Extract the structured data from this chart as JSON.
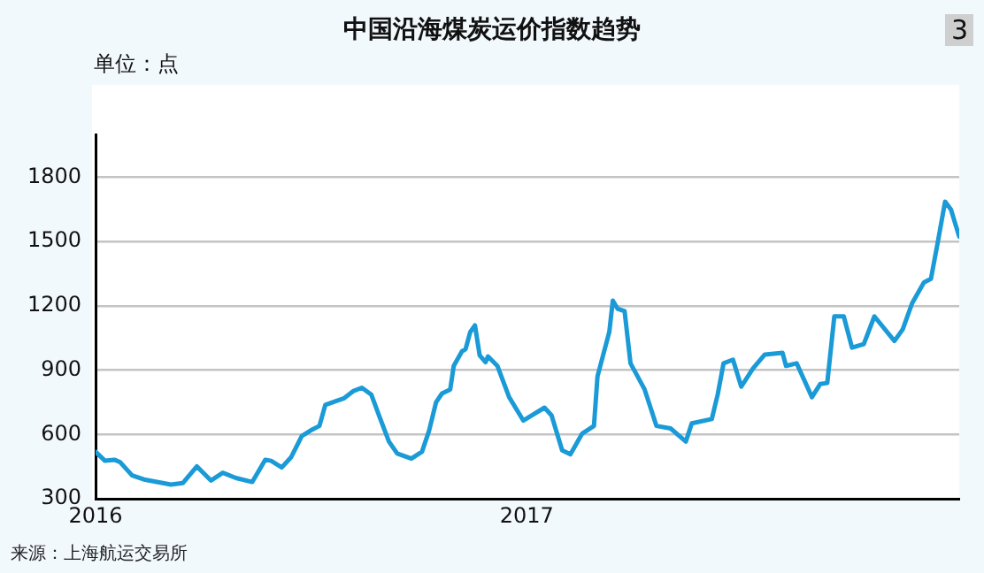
{
  "chart_data": {
    "type": "line",
    "title": "中国沿海煤炭运价指数趋势",
    "ylabel": "单位：点",
    "annotations": [
      "3",
      "来源：上海航运交易所"
    ],
    "x": [
      "2016-01-01",
      "2016-01-09",
      "2016-01-17",
      "2016-01-22",
      "2016-02-01",
      "2016-02-11",
      "2016-03-05",
      "2016-03-15",
      "2016-03-27",
      "2016-04-08",
      "2016-04-18",
      "2016-04-29",
      "2016-05-13",
      "2016-05-24",
      "2016-05-29",
      "2016-06-07",
      "2016-06-15",
      "2016-06-24",
      "2016-07-03",
      "2016-07-09",
      "2016-07-14",
      "2016-07-23",
      "2016-07-30",
      "2016-08-07",
      "2016-08-14",
      "2016-08-22",
      "2016-08-29",
      "2016-09-06",
      "2016-09-13",
      "2016-09-25",
      "2016-10-04",
      "2016-10-10",
      "2016-10-16",
      "2016-10-21",
      "2016-10-28",
      "2016-10-31",
      "2016-11-07",
      "2016-11-10",
      "2016-11-14",
      "2016-11-18",
      "2016-11-22",
      "2016-11-27",
      "2016-11-29",
      "2016-12-07",
      "2016-12-17",
      "2016-12-29",
      "2017-01-16",
      "2017-01-22",
      "2017-01-31",
      "2017-02-07",
      "2017-02-17",
      "2017-02-27",
      "2017-03-02",
      "2017-03-12",
      "2017-03-15",
      "2017-03-19",
      "2017-03-25",
      "2017-03-30",
      "2017-04-11",
      "2017-04-21",
      "2017-05-03",
      "2017-05-16",
      "2017-05-21",
      "2017-06-07",
      "2017-06-12",
      "2017-06-17",
      "2017-06-25",
      "2017-07-02",
      "2017-07-12",
      "2017-07-22",
      "2017-08-06",
      "2017-08-09",
      "2017-08-18",
      "2017-08-31",
      "2017-09-07",
      "2017-09-13",
      "2017-09-19",
      "2017-09-27",
      "2017-10-04",
      "2017-10-14",
      "2017-10-23",
      "2017-11-09",
      "2017-11-16",
      "2017-11-24",
      "2017-12-04",
      "2017-12-10",
      "2017-12-16",
      "2017-12-22",
      "2017-12-27",
      "2018-01-03"
    ],
    "series": [
      {
        "color": "#1a9ad6",
        "values": [
          519,
          477,
          482,
          470,
          409,
          390,
          366,
          373,
          451,
          385,
          421,
          397,
          378,
          482,
          477,
          446,
          494,
          592,
          623,
          640,
          738,
          755,
          769,
          803,
          818,
          786,
          682,
          567,
          511,
          487,
          519,
          616,
          750,
          791,
          810,
          920,
          988,
          998,
          1078,
          1109,
          969,
          937,
          964,
          920,
          774,
          665,
          725,
          689,
          526,
          507,
          604,
          640,
          871,
          1078,
          1224,
          1187,
          1175,
          932,
          810,
          640,
          628,
          567,
          652,
          672,
          786,
          932,
          949,
          823,
          908,
          973,
          981,
          920,
          932,
          774,
          835,
          840,
          1151,
          1151,
          1005,
          1022,
          1151,
          1036,
          1090,
          1212,
          1309,
          1326,
          1503,
          1686,
          1649,
          1523
        ]
      }
    ],
    "xlim": [
      "2016-01-01",
      "2018-01-03"
    ],
    "xticks": [
      "2016",
      "2017"
    ],
    "ylim": [
      300,
      2000
    ],
    "yticks": [
      300,
      600,
      900,
      1200,
      1500,
      1800
    ],
    "grid": "y",
    "legend": false
  }
}
